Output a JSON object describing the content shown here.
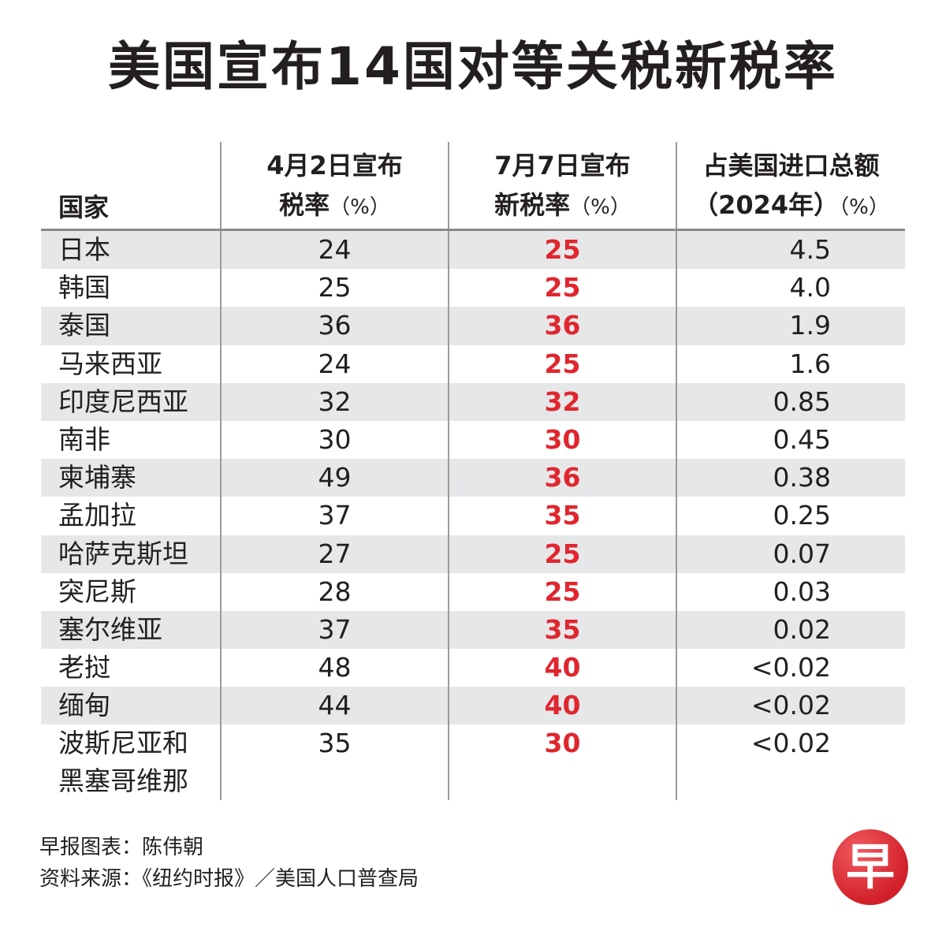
{
  "title": "美国宣布14国对等关税新税率",
  "header": {
    "country": "国家",
    "apr_line1": "4月2日宣布",
    "apr_line2": "税率",
    "jul_line1": "7月7日宣布",
    "jul_line2": "新税率",
    "share_line1": "占美国进口总额",
    "share_line2": "（2024年）",
    "unit": "（%）"
  },
  "chart_data": {
    "type": "table",
    "title": "美国宣布14国对等关税新税率",
    "columns": [
      "国家",
      "4月2日宣布税率（%）",
      "7月7日宣布新税率（%）",
      "占美国进口总额（2024年）（%）"
    ],
    "rows": [
      {
        "country": "日本",
        "apr": "24",
        "jul": "25",
        "share": "4.5"
      },
      {
        "country": "韩国",
        "apr": "25",
        "jul": "25",
        "share": "4.0"
      },
      {
        "country": "泰国",
        "apr": "36",
        "jul": "36",
        "share": "1.9"
      },
      {
        "country": "马来西亚",
        "apr": "24",
        "jul": "25",
        "share": "1.6"
      },
      {
        "country": "印度尼西亚",
        "apr": "32",
        "jul": "32",
        "share": "0.85"
      },
      {
        "country": "南非",
        "apr": "30",
        "jul": "30",
        "share": "0.45"
      },
      {
        "country": "柬埔寨",
        "apr": "49",
        "jul": "36",
        "share": "0.38"
      },
      {
        "country": "孟加拉",
        "apr": "37",
        "jul": "35",
        "share": "0.25"
      },
      {
        "country": "哈萨克斯坦",
        "apr": "27",
        "jul": "25",
        "share": "0.07"
      },
      {
        "country": "突尼斯",
        "apr": "28",
        "jul": "25",
        "share": "0.03"
      },
      {
        "country": "塞尔维亚",
        "apr": "37",
        "jul": "35",
        "share": "0.02"
      },
      {
        "country": "老挝",
        "apr": "48",
        "jul": "40",
        "share": "<0.02"
      },
      {
        "country": "缅甸",
        "apr": "44",
        "jul": "40",
        "share": "<0.02"
      },
      {
        "country": "波斯尼亚和黑塞哥维那",
        "country_lines": [
          "波斯尼亚和",
          "黑塞哥维那"
        ],
        "apr": "35",
        "jul": "30",
        "share": "<0.02"
      }
    ]
  },
  "colors": {
    "highlight": "#e0262e",
    "row_stripe": "#e6e7e9",
    "logo": "#d1202a"
  },
  "footer": {
    "credit": "早报图表：陈伟朝",
    "source": "资料来源：《纽约时报》／美国人口普查局"
  },
  "logo": {
    "icon": "zaobao-logo-icon",
    "mark": "早"
  }
}
